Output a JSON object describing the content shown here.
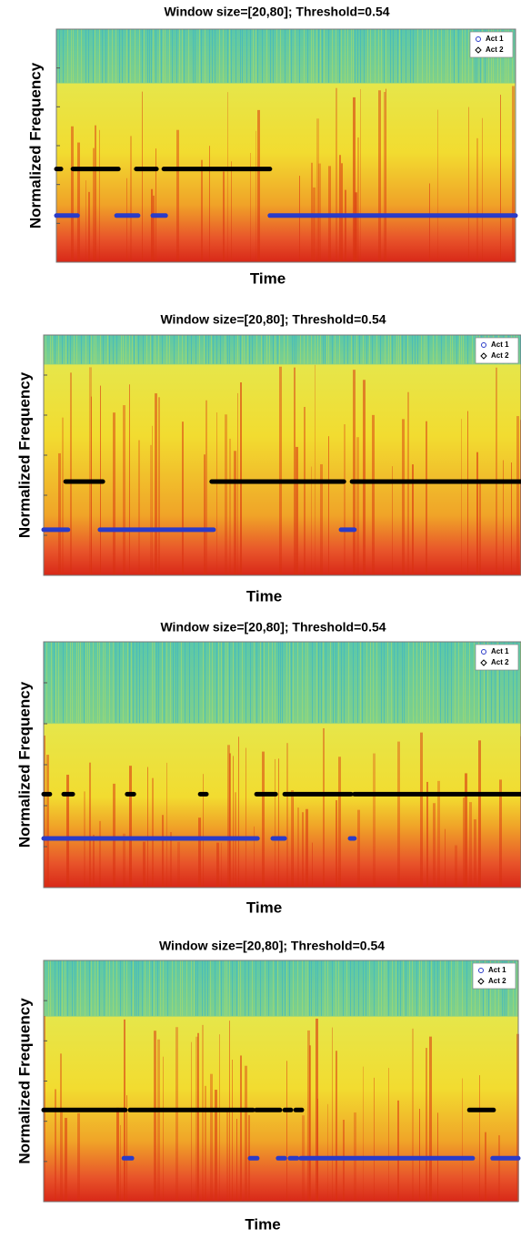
{
  "chart_data": [
    {
      "type": "segments",
      "title": "Window size=[20,80]; Threshold=0.54",
      "xlabel": "Time",
      "ylabel": "Normalized Frequency",
      "xlim": [
        0,
        100
      ],
      "series": [
        {
          "name": "Act 1",
          "color": "#2a3bc8",
          "segments": [
            [
              0,
              4.6
            ],
            [
              13.1,
              17.8
            ],
            [
              21,
              23.8
            ],
            [
              46.5,
              100
            ]
          ]
        },
        {
          "name": "Act 2",
          "color": "#000000",
          "segments": [
            [
              0,
              1
            ],
            [
              3.6,
              13.5
            ],
            [
              17.4,
              21.8
            ],
            [
              23.4,
              46.5
            ]
          ]
        }
      ]
    },
    {
      "type": "segments",
      "title": "Window size=[20,80]; Threshold=0.54",
      "xlabel": "Time",
      "ylabel": "Normalized Frequency",
      "xlim": [
        0,
        100
      ],
      "series": [
        {
          "name": "Act 1",
          "color": "#2a3bc8",
          "segments": [
            [
              0,
              5.1
            ],
            [
              11.8,
              35.6
            ],
            [
              62.3,
              65.1
            ]
          ]
        },
        {
          "name": "Act 2",
          "color": "#000000",
          "segments": [
            [
              4.6,
              12.4
            ],
            [
              35.2,
              62.9
            ],
            [
              64.6,
              100
            ]
          ]
        }
      ]
    },
    {
      "type": "segments",
      "title": "Window size=[20,80]; Threshold=0.54",
      "xlabel": "Time",
      "ylabel": "Normalized Frequency",
      "xlim": [
        0,
        100
      ],
      "series": [
        {
          "name": "Act 1",
          "color": "#2a3bc8",
          "segments": [
            [
              0,
              44.8
            ],
            [
              48,
              50.5
            ],
            [
              64.2,
              65.1
            ]
          ]
        },
        {
          "name": "Act 2",
          "color": "#000000",
          "segments": [
            [
              0,
              1.3
            ],
            [
              4.2,
              6.1
            ],
            [
              17.5,
              18.9
            ],
            [
              32.8,
              34.1
            ],
            [
              44.6,
              48.6
            ],
            [
              50.5,
              64.4
            ],
            [
              65.1,
              100
            ]
          ]
        }
      ]
    },
    {
      "type": "segments",
      "title": "Window size=[20,80]; Threshold=0.54",
      "xlabel": "Time",
      "ylabel": "Normalized Frequency",
      "xlim": [
        0,
        100
      ],
      "series": [
        {
          "name": "Act 1",
          "color": "#2a3bc8",
          "segments": [
            [
              16.9,
              18.6
            ],
            [
              43.5,
              45
            ],
            [
              49.4,
              50.8
            ],
            [
              51.9,
              53.4
            ],
            [
              54.2,
              90.4
            ],
            [
              94.6,
              100
            ]
          ]
        },
        {
          "name": "Act 2",
          "color": "#000000",
          "segments": [
            [
              0,
              17.2
            ],
            [
              18.2,
              44.1
            ],
            [
              44.8,
              49.8
            ],
            [
              50.8,
              52.1
            ],
            [
              53.1,
              54.4
            ],
            [
              89.7,
              94.8
            ]
          ]
        }
      ]
    }
  ]
}
